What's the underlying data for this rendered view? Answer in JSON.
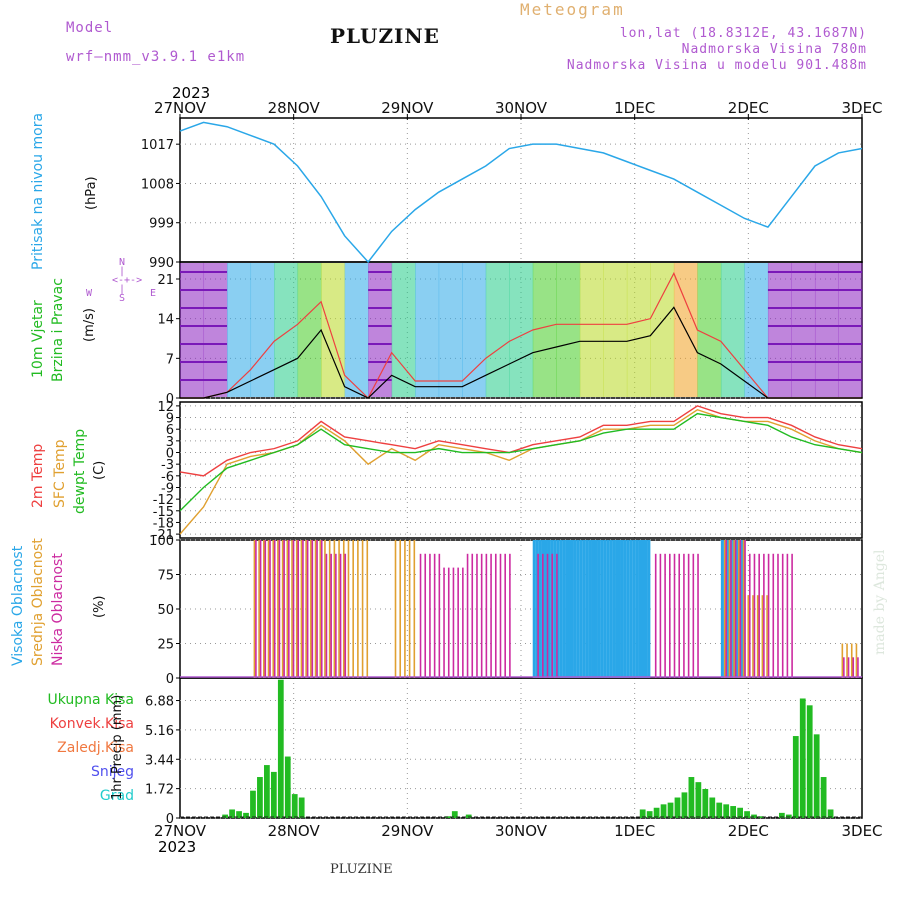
{
  "header": {
    "model_label": "Model",
    "model_name": "wrf–nmm_v3.9.1 e1km",
    "station": "PLUZINE",
    "meteogram": "Meteogram",
    "lonlat": "lon,lat (18.8312E, 43.1687N)",
    "elevation": "Nadmorska Visina 780m",
    "model_elevation": "Nadmorska Visina u modelu 901.488m",
    "footer_station": "PLUZINE",
    "watermark": "made by Angel"
  },
  "time_axis": {
    "year": "2023",
    "ticks": [
      "27NOV",
      "28NOV",
      "29NOV",
      "30NOV",
      "1DEC",
      "2DEC",
      "3DEC"
    ]
  },
  "colors": {
    "pressure": "#2aa7e8",
    "temp2m": "#ee4040",
    "sfc": "#e0a030",
    "dewpt": "#22bb22",
    "high": "#2aa7e8",
    "mid": "#e0a030",
    "low": "#cc2aa0",
    "precip": "#22bb22",
    "convective": "#ee4040",
    "snow": "#5050ee",
    "graupel": "#22cccc"
  },
  "chart_data": [
    {
      "type": "line",
      "ylabel_left": "Pritisak na nivou mora",
      "ylabel_unit": "(hPa)",
      "ylim": [
        990,
        1023
      ],
      "yticks": [
        "1017",
        "1008",
        "999",
        "990"
      ],
      "series": [
        {
          "name": "Pritisak na nivou mora",
          "values": [
            1020,
            1022,
            1021,
            1019,
            1017,
            1012,
            1005,
            996,
            990,
            997,
            1002,
            1006,
            1009,
            1012,
            1016,
            1017,
            1017,
            1016,
            1015,
            1013,
            1011,
            1009,
            1006,
            1003,
            1000,
            998,
            1005,
            1012,
            1015,
            1016
          ]
        }
      ]
    },
    {
      "type": "line",
      "ylabel_left": "10m Vjetar Brzina i Pravac",
      "ylabel_unit": "(m/s)",
      "ylim": [
        0,
        24
      ],
      "yticks": [
        "21",
        "14",
        "7",
        "0"
      ],
      "compass": [
        "N",
        "S",
        "E",
        "W"
      ],
      "series": [
        {
          "name": "Brzina",
          "values": [
            0,
            0,
            1,
            3,
            5,
            7,
            12,
            2,
            0,
            4,
            2,
            2,
            2,
            4,
            6,
            8,
            9,
            10,
            10,
            10,
            11,
            16,
            8,
            6,
            3,
            0,
            0,
            0,
            0,
            0
          ]
        },
        {
          "name": "Udari",
          "values": [
            0,
            0,
            1,
            5,
            10,
            13,
            17,
            4,
            0,
            8,
            3,
            3,
            3,
            7,
            10,
            12,
            13,
            13,
            13,
            13,
            14,
            22,
            12,
            10,
            5,
            0,
            0,
            0,
            0,
            0
          ]
        }
      ]
    },
    {
      "type": "line",
      "ylabel_left": "2m Temp | SFC Temp | dewpt Temp",
      "ylabel_unit": "(C)",
      "ylim": [
        -22,
        13
      ],
      "yticks": [
        "12",
        "9",
        "6",
        "3",
        "0",
        "-3",
        "-6",
        "-9",
        "-12",
        "-15",
        "-18",
        "-21"
      ],
      "series": [
        {
          "name": "2m Temp",
          "values": [
            -5,
            -6,
            -2,
            0,
            1,
            3,
            8,
            4,
            3,
            2,
            1,
            3,
            2,
            1,
            0,
            2,
            3,
            4,
            7,
            7,
            8,
            8,
            12,
            10,
            9,
            9,
            7,
            4,
            2,
            1
          ]
        },
        {
          "name": "SFC Temp",
          "values": [
            -21,
            -14,
            -3,
            -1,
            0,
            2,
            7,
            3,
            -3,
            1,
            -2,
            2,
            1,
            0,
            -2,
            1,
            2,
            3,
            6,
            6,
            7,
            7,
            11,
            9,
            8,
            8,
            6,
            3,
            1,
            0
          ]
        },
        {
          "name": "dewpt Temp",
          "values": [
            -15,
            -9,
            -4,
            -2,
            0,
            2,
            6,
            2,
            1,
            0,
            0,
            1,
            0,
            0,
            0,
            1,
            2,
            3,
            5,
            6,
            6,
            6,
            10,
            9,
            8,
            7,
            4,
            2,
            1,
            0
          ]
        }
      ]
    },
    {
      "type": "bar",
      "ylabel_left": "Visoka Oblacnost | Srednja Oblacnost | Niska Oblacnost",
      "ylabel_unit": "(%)",
      "ylim": [
        0,
        100
      ],
      "yticks": [
        "100",
        "75",
        "50",
        "25",
        "0"
      ],
      "series": [
        {
          "name": "Visoka Oblacnost",
          "values": [
            0,
            0,
            0,
            0,
            0,
            0,
            0,
            0,
            0,
            0,
            0,
            0,
            0,
            0,
            0,
            100,
            100,
            100,
            100,
            100,
            0,
            0,
            0,
            100,
            0,
            0,
            0,
            0,
            0,
            0
          ]
        },
        {
          "name": "Srednja Oblacnost",
          "values": [
            0,
            0,
            0,
            100,
            100,
            100,
            100,
            100,
            0,
            100,
            0,
            0,
            0,
            0,
            0,
            0,
            0,
            0,
            0,
            0,
            0,
            0,
            0,
            100,
            60,
            0,
            0,
            0,
            25,
            0
          ]
        },
        {
          "name": "Niska Oblacnost",
          "values": [
            0,
            0,
            0,
            100,
            100,
            100,
            90,
            0,
            0,
            0,
            90,
            80,
            90,
            90,
            0,
            90,
            0,
            0,
            0,
            0,
            90,
            90,
            0,
            100,
            90,
            90,
            0,
            0,
            15,
            15
          ]
        }
      ]
    },
    {
      "type": "bar",
      "ylabel_left": "1hr Precip",
      "ylabel_unit": "(mm)",
      "ylim": [
        0,
        8.2
      ],
      "yticks": [
        "6.88",
        "5.16",
        "3.44",
        "1.72",
        "0"
      ],
      "legend": [
        "Ukupna Kisa",
        "Konvek.Kisa",
        "Zaledj.Kisa",
        "Snijeg",
        "Grad"
      ],
      "series": [
        {
          "name": "Ukupna Kisa",
          "values": [
            0,
            0,
            0,
            0,
            0,
            0,
            0.2,
            0.5,
            0.4,
            0.3,
            1.6,
            2.4,
            3.1,
            2.7,
            8.1,
            3.6,
            1.4,
            1.2,
            0,
            0,
            0,
            0,
            0,
            0,
            0,
            0,
            0,
            0,
            0,
            0,
            0,
            0,
            0,
            0,
            0,
            0,
            0,
            0,
            0.1,
            0.4,
            0,
            0.2,
            0,
            0,
            0,
            0,
            0,
            0,
            0,
            0,
            0,
            0,
            0,
            0,
            0,
            0,
            0,
            0,
            0,
            0,
            0,
            0,
            0,
            0,
            0,
            0,
            0.5,
            0.4,
            0.6,
            0.8,
            0.9,
            1.2,
            1.5,
            2.4,
            2.1,
            1.7,
            1.2,
            0.9,
            0.8,
            0.7,
            0.6,
            0.4,
            0.2,
            0.1,
            0,
            0,
            0.3,
            0.2,
            4.8,
            7.0,
            6.6,
            4.9,
            2.4,
            0.5,
            0,
            0,
            0,
            0
          ]
        }
      ]
    }
  ]
}
